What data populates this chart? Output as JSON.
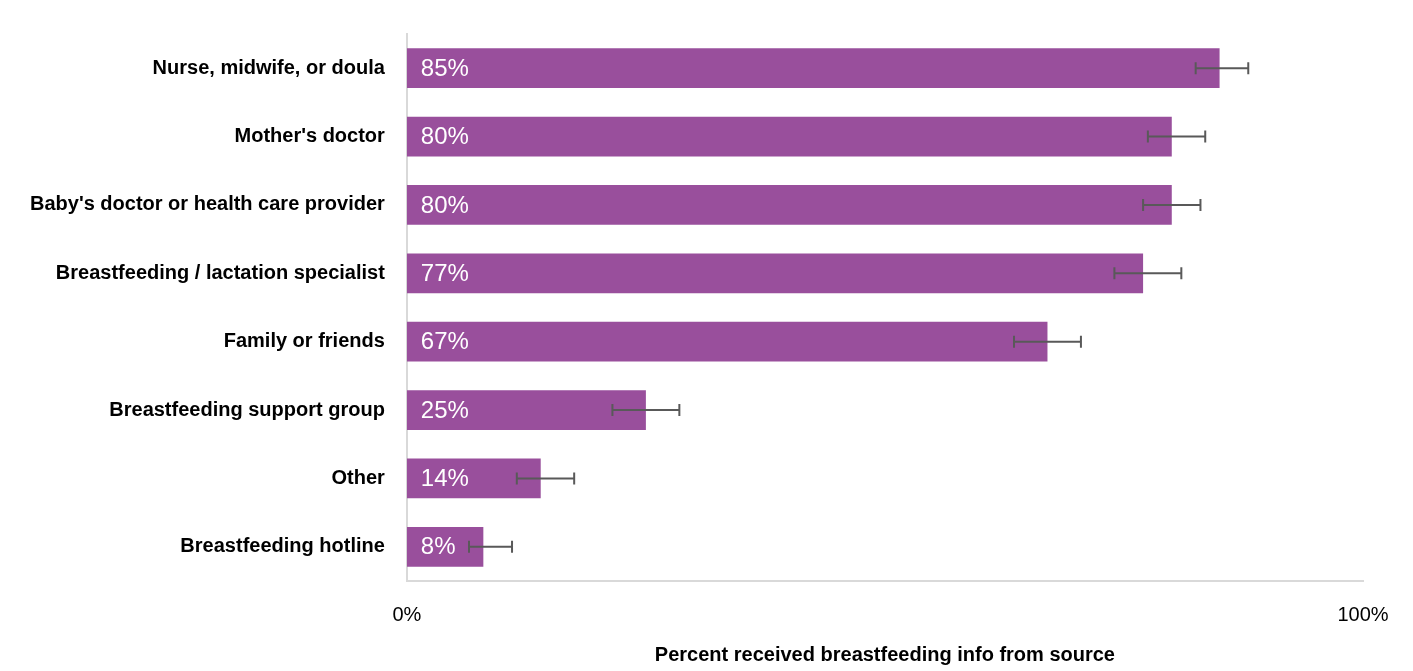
{
  "chart_data": {
    "type": "bar",
    "orientation": "horizontal",
    "xlabel": "Percent received breastfeeding info from source",
    "categories": [
      "Nurse, midwife, or doula",
      "Mother's doctor",
      "Baby's doctor or health care provider",
      "Breastfeeding / lactation specialist",
      "Family or friends",
      "Breastfeeding support group",
      "Other",
      "Breastfeeding hotline"
    ],
    "values": [
      85,
      80,
      80,
      77,
      67,
      25,
      14,
      8
    ],
    "value_labels": [
      "85%",
      "80%",
      "80%",
      "77%",
      "67%",
      "25%",
      "14%",
      "8%"
    ],
    "errors": [
      [
        82.5,
        88
      ],
      [
        77.5,
        83.5
      ],
      [
        77,
        83
      ],
      [
        74,
        81
      ],
      [
        63.5,
        70.5
      ],
      [
        21.5,
        28.5
      ],
      [
        11.5,
        17.5
      ],
      [
        6.5,
        11
      ]
    ],
    "color": "#994f9c",
    "xlim": [
      0,
      100
    ],
    "xticks": [
      {
        "value": 0,
        "label": "0%"
      },
      {
        "value": 100,
        "label": "100%"
      }
    ],
    "grid": false,
    "legend": false
  }
}
